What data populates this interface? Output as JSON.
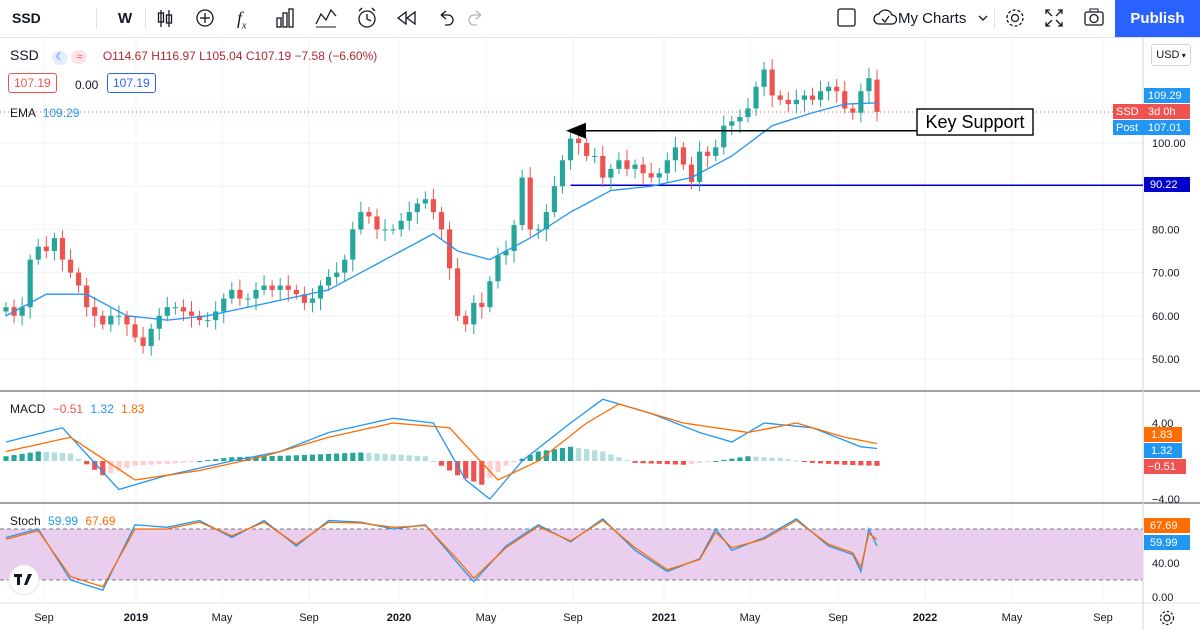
{
  "toolbar": {
    "symbol": "SSD",
    "interval": "W",
    "fx_icon_label": "f",
    "my_charts": "My Charts",
    "publish": "Publish"
  },
  "legend": {
    "symbol": "SSD",
    "ohlc": "O114.67 H116.97 L105.04 C107.19 −7.58 (−6.60%)",
    "bid": "107.19",
    "spread": "0.00",
    "ask": "107.19",
    "ema_label": "EMA",
    "ema_value": "109.29",
    "macd_label": "MACD",
    "macd_hist": "−0.51",
    "macd_line": "1.32",
    "macd_signal": "1.83",
    "stoch_label": "Stoch",
    "stoch_k": "59.99",
    "stoch_d": "67.69"
  },
  "axis": {
    "currency": "USD",
    "price_ticks": [
      "100.00",
      "90.00",
      "80.00",
      "70.00",
      "60.00",
      "50.00"
    ],
    "macd_ticks": [
      "4.00",
      "−4.00"
    ],
    "stoch_ticks": [
      "40.00",
      "0.00"
    ],
    "time_ticks": [
      "Sep",
      "2019",
      "May",
      "Sep",
      "2020",
      "May",
      "Sep",
      "2021",
      "May",
      "Sep",
      "2022",
      "May",
      "Sep"
    ]
  },
  "price_tags": {
    "ema": "109.29",
    "symbol_tag": "SSD",
    "countdown": "3d 0h",
    "post_label": "Post",
    "post_value": "107.01",
    "hline": "90.22",
    "macd_signal": "1.83",
    "macd_line": "1.32",
    "macd_hist": "−0.51",
    "stoch_d": "67.69",
    "stoch_k": "59.99"
  },
  "annotation": {
    "text": "Key Support"
  },
  "colors": {
    "up": "#26a69a",
    "down": "#ef5350",
    "ema": "#2196f3",
    "hline": "#0000cc",
    "macd": "#2196f3",
    "signal": "#ff6d00",
    "stoch_band": "#e1bee7",
    "publish": "#2962ff"
  },
  "chart_data": {
    "type": "candlestick",
    "interval": "weekly",
    "symbol": "SSD",
    "y_range": [
      45,
      122
    ],
    "key_support": 103.3,
    "horizontal_line": 90.22,
    "last": {
      "open": 114.67,
      "high": 116.97,
      "low": 105.04,
      "close": 107.19,
      "change": -7.58,
      "change_pct": -6.6
    },
    "price_path": [
      [
        0,
        62
      ],
      [
        1,
        60
      ],
      [
        2,
        62
      ],
      [
        3,
        73
      ],
      [
        4,
        76
      ],
      [
        5,
        75
      ],
      [
        6,
        78
      ],
      [
        7,
        73
      ],
      [
        8,
        70
      ],
      [
        9,
        67
      ],
      [
        10,
        62
      ],
      [
        11,
        60
      ],
      [
        12,
        58
      ],
      [
        13,
        60
      ],
      [
        14,
        60
      ],
      [
        15,
        58
      ],
      [
        16,
        55
      ],
      [
        17,
        53
      ],
      [
        18,
        57
      ],
      [
        19,
        60
      ],
      [
        20,
        62
      ],
      [
        21,
        62
      ],
      [
        22,
        61
      ],
      [
        23,
        60
      ],
      [
        24,
        59
      ],
      [
        25,
        59
      ],
      [
        26,
        61
      ],
      [
        27,
        64
      ],
      [
        28,
        66
      ],
      [
        29,
        64
      ],
      [
        30,
        64
      ],
      [
        31,
        66
      ],
      [
        32,
        67
      ],
      [
        33,
        66
      ],
      [
        34,
        67
      ],
      [
        35,
        66
      ],
      [
        36,
        65
      ],
      [
        37,
        63
      ],
      [
        38,
        64
      ],
      [
        39,
        67
      ],
      [
        40,
        69
      ],
      [
        41,
        70
      ],
      [
        42,
        73
      ],
      [
        43,
        80
      ],
      [
        44,
        84
      ],
      [
        45,
        83
      ],
      [
        46,
        80
      ],
      [
        47,
        80
      ],
      [
        48,
        80
      ],
      [
        49,
        82
      ],
      [
        50,
        84
      ],
      [
        51,
        86
      ],
      [
        52,
        87
      ],
      [
        53,
        84
      ],
      [
        54,
        80
      ],
      [
        55,
        71
      ],
      [
        56,
        60
      ],
      [
        57,
        58
      ],
      [
        58,
        63
      ],
      [
        59,
        62
      ],
      [
        60,
        68
      ],
      [
        61,
        74
      ],
      [
        62,
        75
      ],
      [
        63,
        81
      ],
      [
        64,
        92
      ],
      [
        65,
        80
      ],
      [
        66,
        80
      ],
      [
        67,
        84
      ],
      [
        68,
        90
      ],
      [
        69,
        96
      ],
      [
        70,
        101
      ],
      [
        71,
        100
      ],
      [
        72,
        97
      ],
      [
        73,
        97
      ],
      [
        74,
        92
      ],
      [
        75,
        94
      ],
      [
        76,
        96
      ],
      [
        77,
        94
      ],
      [
        78,
        95
      ],
      [
        79,
        93
      ],
      [
        80,
        92
      ],
      [
        81,
        93
      ],
      [
        82,
        96
      ],
      [
        83,
        99
      ],
      [
        84,
        95
      ],
      [
        85,
        91
      ],
      [
        86,
        98
      ],
      [
        87,
        97
      ],
      [
        88,
        99
      ],
      [
        89,
        104
      ],
      [
        90,
        105
      ],
      [
        91,
        106
      ],
      [
        92,
        108
      ],
      [
        93,
        113
      ],
      [
        94,
        117
      ],
      [
        95,
        111
      ],
      [
        96,
        110
      ],
      [
        97,
        109
      ],
      [
        98,
        110
      ],
      [
        99,
        111
      ],
      [
        100,
        110
      ],
      [
        101,
        112
      ],
      [
        102,
        113
      ],
      [
        103,
        112
      ],
      [
        104,
        108
      ],
      [
        105,
        107
      ],
      [
        106,
        112
      ],
      [
        107,
        115
      ],
      [
        108,
        107.19
      ]
    ],
    "ema": [
      [
        0,
        60
      ],
      [
        5,
        65
      ],
      [
        10,
        65
      ],
      [
        15,
        60
      ],
      [
        20,
        59
      ],
      [
        25,
        60
      ],
      [
        30,
        62
      ],
      [
        35,
        64
      ],
      [
        40,
        66
      ],
      [
        45,
        71
      ],
      [
        50,
        76
      ],
      [
        53,
        79
      ],
      [
        56,
        75
      ],
      [
        60,
        73
      ],
      [
        65,
        78
      ],
      [
        70,
        84
      ],
      [
        75,
        89
      ],
      [
        80,
        90
      ],
      [
        85,
        92
      ],
      [
        90,
        97
      ],
      [
        95,
        104
      ],
      [
        100,
        107
      ],
      [
        104,
        109
      ],
      [
        108,
        109.29
      ]
    ],
    "macd": {
      "line": [
        [
          0,
          2
        ],
        [
          7,
          3.5
        ],
        [
          14,
          -3
        ],
        [
          20,
          -1.5
        ],
        [
          28,
          0
        ],
        [
          34,
          1
        ],
        [
          40,
          3
        ],
        [
          48,
          4.5
        ],
        [
          53,
          4
        ],
        [
          57,
          -2
        ],
        [
          60,
          -4
        ],
        [
          64,
          0
        ],
        [
          70,
          4
        ],
        [
          74,
          6.5
        ],
        [
          80,
          5
        ],
        [
          86,
          3
        ],
        [
          90,
          2
        ],
        [
          94,
          4
        ],
        [
          100,
          3.5
        ],
        [
          106,
          1.5
        ],
        [
          108,
          1.32
        ]
      ],
      "signal": [
        [
          0,
          1
        ],
        [
          8,
          2.5
        ],
        [
          16,
          -2
        ],
        [
          24,
          -1
        ],
        [
          32,
          0.5
        ],
        [
          40,
          2.5
        ],
        [
          48,
          4
        ],
        [
          55,
          3.5
        ],
        [
          61,
          -2
        ],
        [
          66,
          0
        ],
        [
          72,
          4
        ],
        [
          76,
          6
        ],
        [
          84,
          4
        ],
        [
          92,
          3
        ],
        [
          98,
          4
        ],
        [
          104,
          2.5
        ],
        [
          108,
          1.83
        ]
      ],
      "hist": [
        [
          0,
          0.5
        ],
        [
          4,
          1
        ],
        [
          8,
          0.8
        ],
        [
          12,
          -1.5
        ],
        [
          16,
          -0.5
        ],
        [
          22,
          -0.2
        ],
        [
          28,
          0.4
        ],
        [
          36,
          0.6
        ],
        [
          44,
          0.9
        ],
        [
          52,
          0.5
        ],
        [
          56,
          -1.5
        ],
        [
          59,
          -2.5
        ],
        [
          62,
          -0.5
        ],
        [
          66,
          1
        ],
        [
          70,
          1.5
        ],
        [
          74,
          1
        ],
        [
          78,
          -0.2
        ],
        [
          84,
          -0.4
        ],
        [
          88,
          0
        ],
        [
          92,
          0.5
        ],
        [
          96,
          0.3
        ],
        [
          100,
          -0.2
        ],
        [
          104,
          -0.4
        ],
        [
          108,
          -0.51
        ]
      ]
    },
    "stoch": {
      "k": [
        [
          0,
          70
        ],
        [
          4,
          80
        ],
        [
          8,
          20
        ],
        [
          12,
          8
        ],
        [
          16,
          85
        ],
        [
          20,
          82
        ],
        [
          24,
          90
        ],
        [
          28,
          70
        ],
        [
          32,
          90
        ],
        [
          36,
          60
        ],
        [
          40,
          90
        ],
        [
          44,
          88
        ],
        [
          48,
          80
        ],
        [
          52,
          85
        ],
        [
          56,
          40
        ],
        [
          58,
          18
        ],
        [
          62,
          60
        ],
        [
          66,
          85
        ],
        [
          70,
          65
        ],
        [
          74,
          92
        ],
        [
          78,
          55
        ],
        [
          82,
          30
        ],
        [
          86,
          45
        ],
        [
          88,
          80
        ],
        [
          90,
          55
        ],
        [
          94,
          70
        ],
        [
          98,
          92
        ],
        [
          102,
          60
        ],
        [
          105,
          50
        ],
        [
          106,
          30
        ],
        [
          107,
          80
        ],
        [
          108,
          59.99
        ]
      ],
      "d": [
        [
          0,
          68
        ],
        [
          4,
          78
        ],
        [
          8,
          24
        ],
        [
          12,
          12
        ],
        [
          16,
          80
        ],
        [
          20,
          80
        ],
        [
          24,
          88
        ],
        [
          28,
          72
        ],
        [
          32,
          88
        ],
        [
          36,
          62
        ],
        [
          40,
          88
        ],
        [
          44,
          87
        ],
        [
          48,
          82
        ],
        [
          52,
          84
        ],
        [
          56,
          44
        ],
        [
          58,
          22
        ],
        [
          62,
          58
        ],
        [
          66,
          83
        ],
        [
          70,
          66
        ],
        [
          74,
          90
        ],
        [
          78,
          58
        ],
        [
          82,
          32
        ],
        [
          86,
          44
        ],
        [
          88,
          76
        ],
        [
          90,
          58
        ],
        [
          94,
          68
        ],
        [
          98,
          90
        ],
        [
          102,
          62
        ],
        [
          105,
          52
        ],
        [
          106,
          35
        ],
        [
          107,
          75
        ],
        [
          108,
          67.69
        ]
      ],
      "band": [
        20,
        80
      ]
    }
  }
}
